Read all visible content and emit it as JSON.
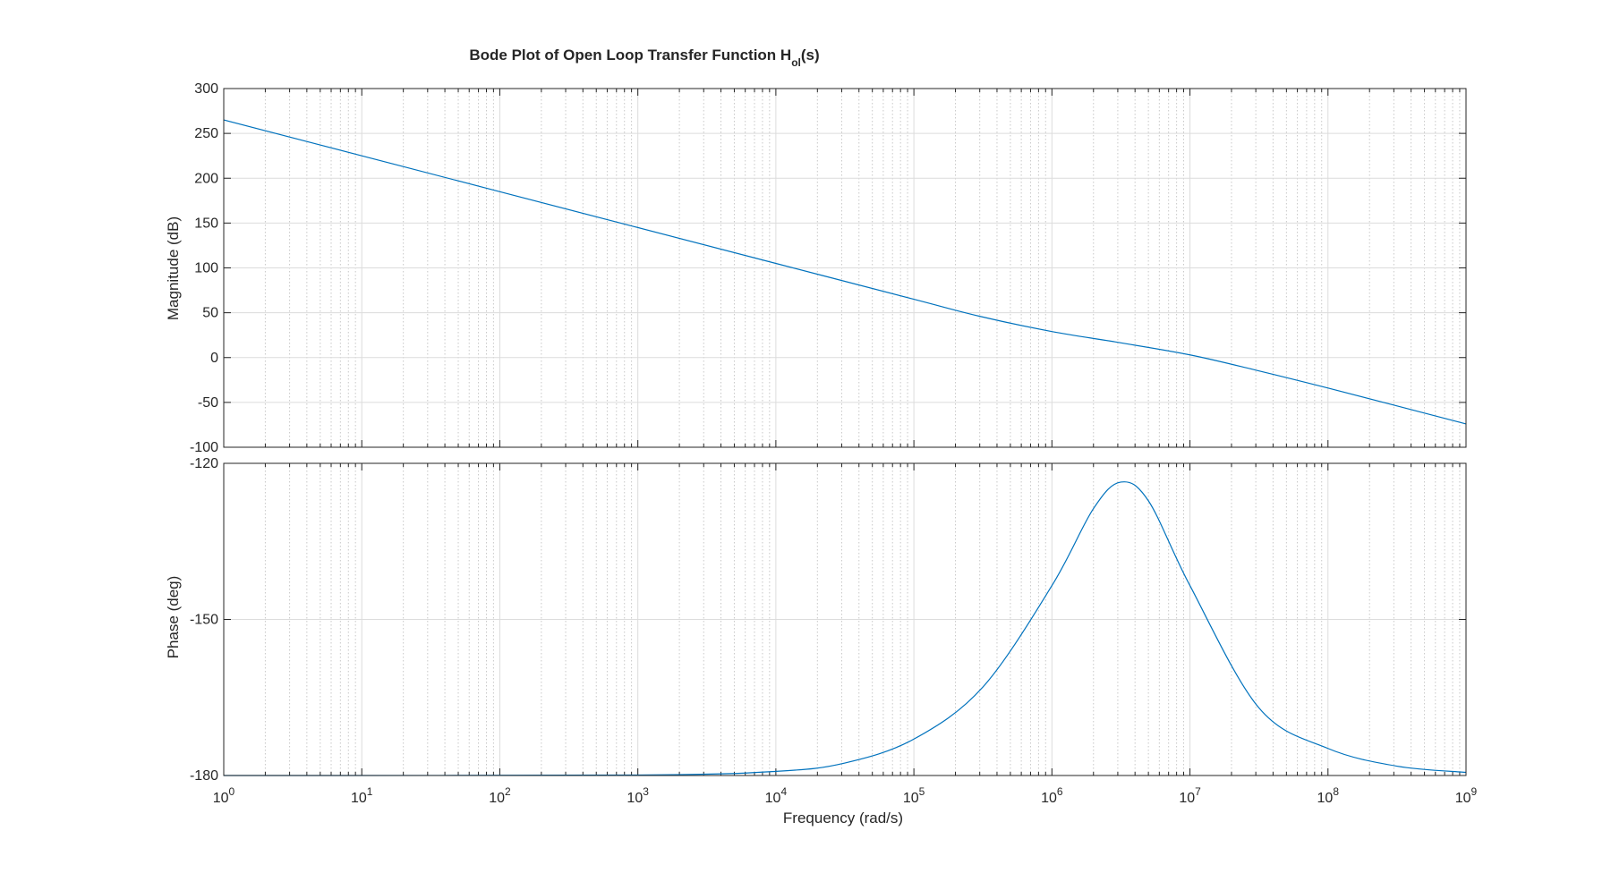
{
  "chart_data": {
    "type": "line",
    "title": {
      "main": "Bode Plot of Open Loop Transfer Function H",
      "subscript": "ol",
      "suffix": "(s)"
    },
    "x_axis": {
      "label": "Frequency  (rad/s)",
      "scale": "log",
      "range": [
        1,
        1000000000
      ],
      "tick_bases": [
        "10",
        "10",
        "10",
        "10",
        "10",
        "10",
        "10",
        "10",
        "10",
        "10"
      ],
      "tick_exponents": [
        "0",
        "1",
        "2",
        "3",
        "4",
        "5",
        "6",
        "7",
        "8",
        "9"
      ]
    },
    "grid": "on (major and minor)",
    "line_color": "#0072BD",
    "panels": [
      {
        "name": "magnitude",
        "ylabel": "Magnitude (dB)",
        "ylim": [
          -100,
          300
        ],
        "yticks": [
          300,
          250,
          200,
          150,
          100,
          50,
          0,
          -50,
          -100
        ],
        "ytick_labels": [
          "300",
          "250",
          "200",
          "150",
          "100",
          "50",
          "0",
          "-50",
          "-100"
        ],
        "series": [
          {
            "x": [
              1,
              10,
              100,
              1000,
              10000,
              100000,
              300000,
              1000000,
              3000000,
              10000000,
              30000000,
              100000000,
              1000000000
            ],
            "y": [
              265,
              225,
              185,
              145,
              105,
              65,
              46,
              29,
              17,
              3,
              -14,
              -34,
              -74
            ]
          }
        ]
      },
      {
        "name": "phase",
        "ylabel": "Phase (deg)",
        "ylim": [
          -180,
          -120
        ],
        "yticks": [
          -120,
          -150,
          -180
        ],
        "ytick_labels": [
          "-120",
          "-150",
          "-180"
        ],
        "series": [
          {
            "x": [
              1,
              1000,
              10000,
              31600,
              100000,
              316000,
              1000000,
              2000000,
              3160000,
              5000000,
              10000000,
              31600000,
              100000000,
              316000000,
              1000000000
            ],
            "y": [
              -180,
              -179.9,
              -179.2,
              -177.6,
              -173,
              -163,
              -143.5,
              -128.7,
              -123.6,
              -127.2,
              -143.5,
              -167,
              -174.8,
              -178.2,
              -179.4
            ]
          }
        ]
      }
    ]
  }
}
